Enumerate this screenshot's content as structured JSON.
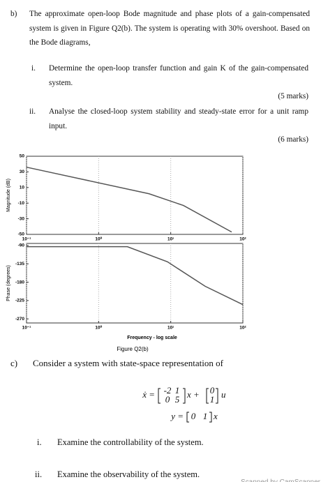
{
  "question_b": {
    "label": "b)",
    "text": "The approximate open-loop Bode magnitude and phase plots of a gain-compensated system is given in Figure Q2(b). The system is operating with 30% overshoot. Based on the Bode diagrams,",
    "parts": [
      {
        "label": "i.",
        "text": "Determine the open-loop transfer function and gain K of the gain-compensated system.",
        "marks": "(5 marks)"
      },
      {
        "label": "ii.",
        "text": "Analyse the closed-loop system stability and steady-state error for a unit ramp input.",
        "marks": "(6 marks)"
      }
    ]
  },
  "chart_data": [
    {
      "type": "line",
      "y_label": "Magnitude (dB)",
      "log_x": true,
      "grid": true,
      "x": [
        0.1,
        5,
        15,
        70
      ],
      "values": [
        36,
        2,
        -13,
        -47
      ],
      "color": "#555555",
      "xlim": [
        0.1,
        100
      ],
      "ylim": [
        -50,
        50
      ],
      "xticks": [
        {
          "value": 0.1,
          "label": "10⁻¹"
        },
        {
          "value": 1,
          "label": "10⁰"
        },
        {
          "value": 10,
          "label": "10¹"
        },
        {
          "value": 100,
          "label": "10²"
        }
      ],
      "yticks": [
        -50,
        -30,
        -10,
        10,
        30,
        50
      ]
    },
    {
      "type": "line",
      "y_label": "Phase (degrees)",
      "x_label": "Frequency - log scale",
      "log_x": true,
      "grid": true,
      "x": [
        0.1,
        2.5,
        9,
        30,
        100
      ],
      "values": [
        -93,
        -93,
        -130,
        -190,
        -235
      ],
      "color": "#555555",
      "xlim": [
        0.1,
        100
      ],
      "ylim": [
        -280,
        -85
      ],
      "xticks": [
        {
          "value": 0.1,
          "label": "10⁻¹"
        },
        {
          "value": 1,
          "label": "10⁰"
        },
        {
          "value": 10,
          "label": "10¹"
        },
        {
          "value": 100,
          "label": "10²"
        }
      ],
      "yticks": [
        -270,
        -225,
        -180,
        -135,
        -90
      ]
    }
  ],
  "figure": {
    "caption": "Figure Q2(b)"
  },
  "question_c": {
    "label": "c)",
    "text": "Consider a system with state-space representation of",
    "equation": {
      "lhs1": "ẋ =",
      "A": [
        [
          -2,
          1
        ],
        [
          0,
          5
        ]
      ],
      "mid": "x +",
      "B": [
        [
          0
        ],
        [
          1
        ]
      ],
      "rhs1": "u",
      "lhs2": "y =",
      "C": [
        [
          0,
          1
        ]
      ],
      "rhs2": "x"
    },
    "parts": [
      {
        "label": "i.",
        "text": "Examine the controllability of the system."
      },
      {
        "label": "ii.",
        "text": "Examine the observability of the system."
      }
    ]
  },
  "watermark": "Scanned by CamScanner"
}
